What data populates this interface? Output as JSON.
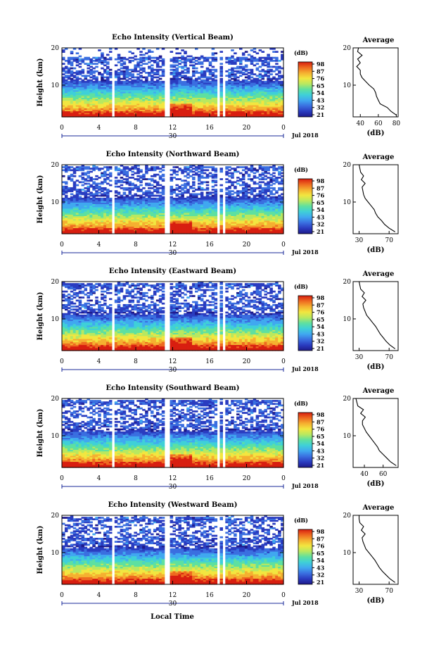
{
  "colors": {
    "colormap": [
      "#1e1a8a",
      "#2a3cc0",
      "#3a6fe0",
      "#40a8f0",
      "#3fd0d8",
      "#5ee0a0",
      "#b8e860",
      "#f2e640",
      "#f5b030",
      "#ee6a20",
      "#d81e10"
    ],
    "frame": "#000000",
    "time_axis": "#1a2a9a"
  },
  "figure": {
    "xlabel": "Local Time",
    "date_day": "30",
    "date_label": "Jul 2018"
  },
  "chart_data": [
    {
      "type": "heatmap",
      "title": "Echo Intensity (Vertical Beam)",
      "ylabel": "Height (km)",
      "x_ticks": [
        "0",
        "4",
        "8",
        "12",
        "16",
        "20",
        "0"
      ],
      "xlim": [
        0,
        24
      ],
      "y_ticks": [
        "20",
        "10"
      ],
      "ylim": [
        1.5,
        20
      ],
      "colorbar": {
        "label": "(dB)",
        "ticks": [
          "98",
          "87",
          "76",
          "65",
          "54",
          "43",
          "32",
          "21"
        ]
      },
      "data_gaps_hours": [
        [
          5.5,
          5.8
        ],
        [
          11.2,
          11.6
        ],
        [
          16.7,
          17.0
        ],
        [
          17.4,
          17.7
        ]
      ],
      "profile": {
        "title": "Average",
        "xlabel": "(dB)",
        "x_ticks": [
          "40",
          "60",
          "80"
        ],
        "xlim": [
          32,
          82
        ],
        "y_ticks": [
          "20",
          "10"
        ],
        "ylim": [
          1.5,
          20
        ],
        "height_km": [
          2,
          3,
          4,
          5,
          6,
          7,
          8,
          9,
          10,
          11,
          12,
          13,
          14,
          15,
          16,
          17,
          18,
          19,
          20
        ],
        "avg_db": [
          80,
          74,
          70,
          62,
          60,
          58,
          57,
          55,
          50,
          46,
          42,
          40,
          40,
          36,
          40,
          37,
          42,
          37,
          38
        ]
      }
    },
    {
      "type": "heatmap",
      "title": "Echo Intensity (Northward Beam)",
      "ylabel": "Height (km)",
      "x_ticks": [
        "0",
        "4",
        "8",
        "12",
        "16",
        "20",
        "0"
      ],
      "xlim": [
        0,
        24
      ],
      "y_ticks": [
        "20",
        "10"
      ],
      "ylim": [
        1.5,
        20
      ],
      "colorbar": {
        "label": "(dB)",
        "ticks": [
          "98",
          "87",
          "76",
          "65",
          "54",
          "43",
          "32",
          "21"
        ]
      },
      "data_gaps_hours": [
        [
          5.5,
          5.8
        ],
        [
          11.2,
          11.6
        ],
        [
          16.7,
          17.0
        ],
        [
          17.4,
          17.7
        ]
      ],
      "profile": {
        "title": "Average",
        "xlabel": "(dB)",
        "x_ticks": [
          "30",
          "70"
        ],
        "xlim": [
          22,
          82
        ],
        "y_ticks": [
          "20",
          "10"
        ],
        "ylim": [
          1.5,
          20
        ],
        "height_km": [
          2,
          3,
          4,
          5,
          6,
          7,
          8,
          9,
          10,
          11,
          12,
          13,
          14,
          15,
          16,
          17,
          18,
          19,
          20
        ],
        "avg_db": [
          78,
          70,
          64,
          60,
          55,
          52,
          50,
          46,
          42,
          38,
          36,
          35,
          34,
          38,
          33,
          36,
          32,
          31,
          30
        ]
      }
    },
    {
      "type": "heatmap",
      "title": "Echo Intensity (Eastward Beam)",
      "ylabel": "Height (km)",
      "x_ticks": [
        "0",
        "4",
        "8",
        "12",
        "16",
        "20",
        "0"
      ],
      "xlim": [
        0,
        24
      ],
      "y_ticks": [
        "20",
        "10"
      ],
      "ylim": [
        1.5,
        20
      ],
      "colorbar": {
        "label": "(dB)",
        "ticks": [
          "98",
          "87",
          "76",
          "65",
          "54",
          "43",
          "32",
          "21"
        ]
      },
      "data_gaps_hours": [
        [
          5.5,
          5.8
        ],
        [
          11.2,
          11.6
        ],
        [
          16.7,
          17.0
        ],
        [
          17.4,
          17.7
        ]
      ],
      "profile": {
        "title": "Average",
        "xlabel": "(dB)",
        "x_ticks": [
          "30",
          "70"
        ],
        "xlim": [
          22,
          82
        ],
        "y_ticks": [
          "20",
          "10"
        ],
        "ylim": [
          1.5,
          20
        ],
        "height_km": [
          2,
          3,
          4,
          5,
          6,
          7,
          8,
          9,
          10,
          11,
          12,
          13,
          14,
          15,
          16,
          17,
          18,
          19,
          20
        ],
        "avg_db": [
          78,
          71,
          66,
          62,
          58,
          55,
          52,
          48,
          44,
          40,
          38,
          36,
          35,
          39,
          34,
          37,
          32,
          31,
          30
        ]
      }
    },
    {
      "type": "heatmap",
      "title": "Echo Intensity (Southward Beam)",
      "ylabel": "Height (km)",
      "x_ticks": [
        "0",
        "4",
        "8",
        "12",
        "16",
        "20",
        "0"
      ],
      "xlim": [
        0,
        24
      ],
      "y_ticks": [
        "20",
        "10"
      ],
      "ylim": [
        1.5,
        20
      ],
      "colorbar": {
        "label": "(dB)",
        "ticks": [
          "98",
          "87",
          "76",
          "65",
          "54",
          "43",
          "32",
          "21"
        ]
      },
      "data_gaps_hours": [
        [
          5.5,
          5.8
        ],
        [
          11.2,
          11.6
        ],
        [
          16.7,
          17.0
        ],
        [
          17.4,
          17.7
        ]
      ],
      "profile": {
        "title": "Average",
        "xlabel": "(dB)",
        "x_ticks": [
          "40",
          "60"
        ],
        "xlim": [
          28,
          76
        ],
        "y_ticks": [
          "20",
          "10"
        ],
        "ylim": [
          1.5,
          20
        ],
        "height_km": [
          2,
          3,
          4,
          5,
          6,
          7,
          8,
          9,
          10,
          11,
          12,
          13,
          14,
          15,
          16,
          17,
          18,
          19,
          20
        ],
        "avg_db": [
          74,
          68,
          64,
          60,
          56,
          54,
          51,
          48,
          45,
          42,
          40,
          38,
          38,
          41,
          36,
          39,
          33,
          32,
          31
        ]
      }
    },
    {
      "type": "heatmap",
      "title": "Echo Intensity (Westward Beam)",
      "ylabel": "Height (km)",
      "x_ticks": [
        "0",
        "4",
        "8",
        "12",
        "16",
        "20",
        "0"
      ],
      "xlim": [
        0,
        24
      ],
      "y_ticks": [
        "20",
        "10"
      ],
      "ylim": [
        1.5,
        20
      ],
      "colorbar": {
        "label": "(dB)",
        "ticks": [
          "98",
          "87",
          "76",
          "65",
          "54",
          "43",
          "32",
          "21"
        ]
      },
      "data_gaps_hours": [
        [
          5.5,
          5.8
        ],
        [
          11.2,
          11.6
        ],
        [
          16.7,
          17.0
        ],
        [
          17.4,
          17.7
        ]
      ],
      "profile": {
        "title": "Average",
        "xlabel": "(dB)",
        "x_ticks": [
          "30",
          "70"
        ],
        "xlim": [
          22,
          82
        ],
        "y_ticks": [
          "20",
          "10"
        ],
        "ylim": [
          1.5,
          20
        ],
        "height_km": [
          2,
          3,
          4,
          5,
          6,
          7,
          8,
          9,
          10,
          11,
          12,
          13,
          14,
          15,
          16,
          17,
          18,
          19,
          20
        ],
        "avg_db": [
          78,
          71,
          66,
          61,
          57,
          54,
          51,
          47,
          43,
          39,
          37,
          35,
          34,
          38,
          33,
          36,
          31,
          30,
          30
        ]
      }
    }
  ]
}
